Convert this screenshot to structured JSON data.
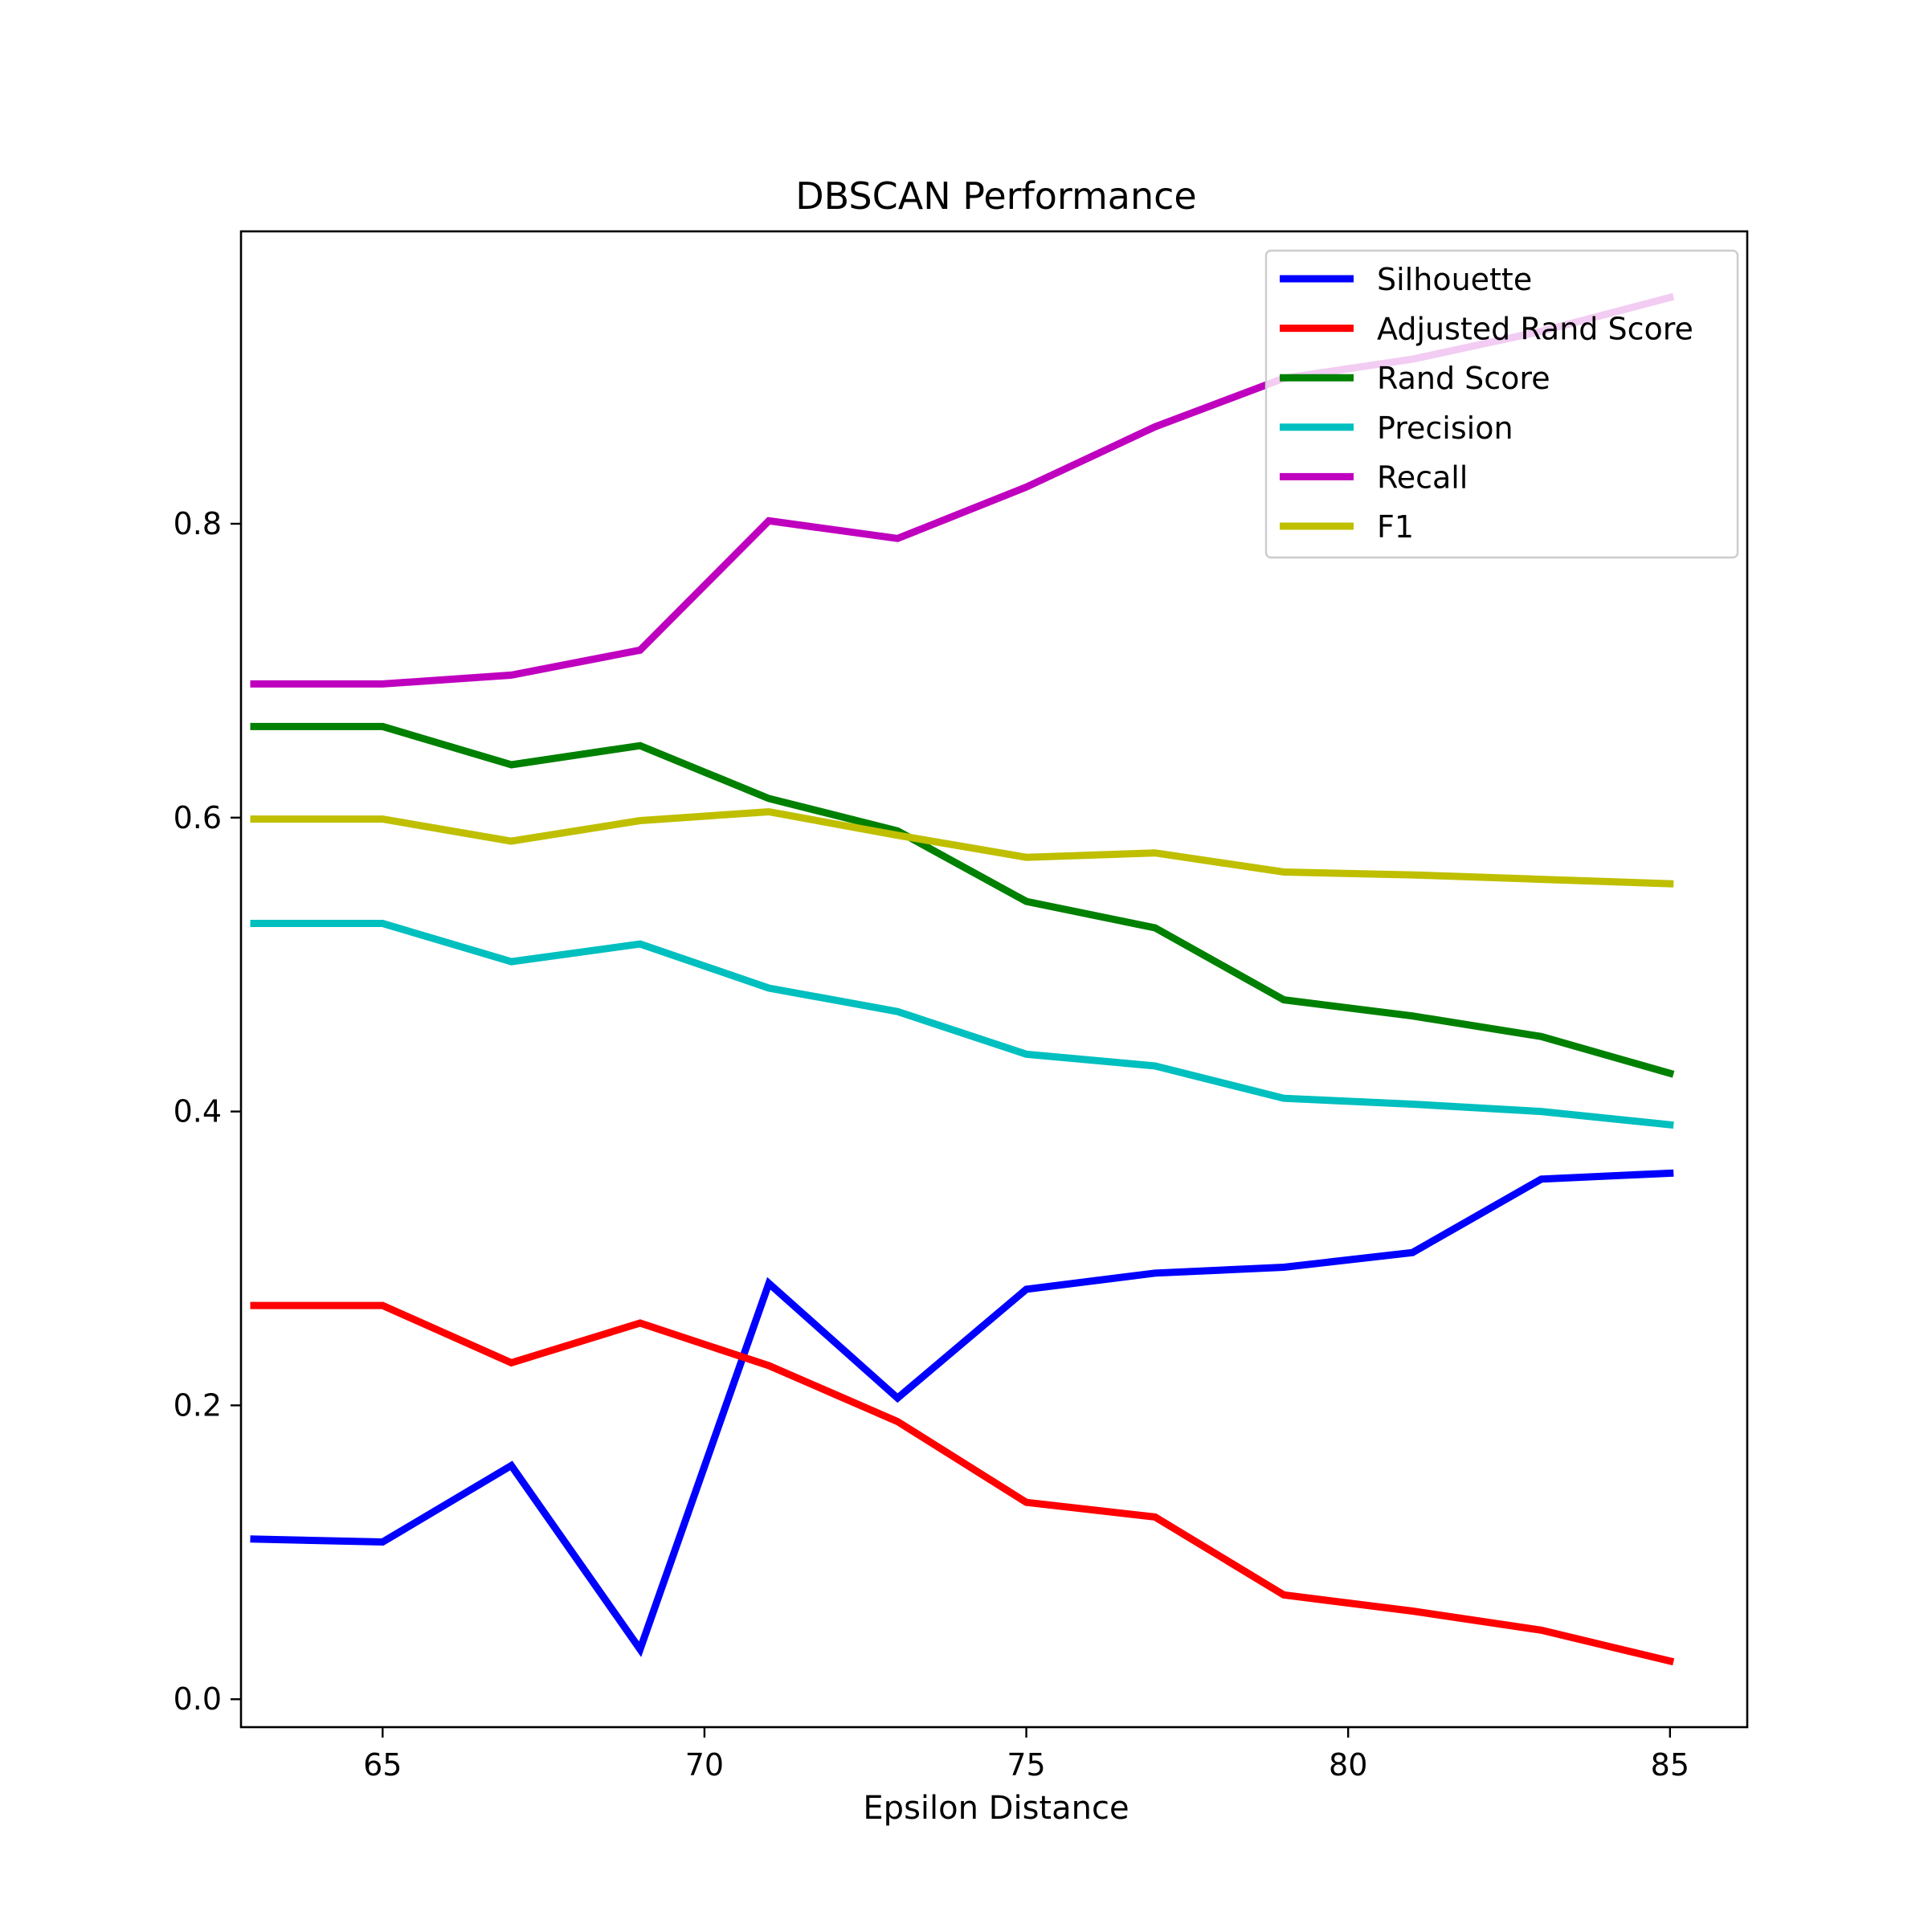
{
  "chart_data": {
    "type": "line",
    "title": "DBSCAN Performance",
    "xlabel": "Epsilon Distance",
    "ylabel": "",
    "xlim": [
      62.8,
      86.2
    ],
    "ylim": [
      -0.019,
      0.999
    ],
    "x_ticks": [
      65,
      70,
      75,
      80,
      85
    ],
    "x_tick_labels": [
      "65",
      "70",
      "75",
      "80",
      "85"
    ],
    "y_ticks": [
      0.0,
      0.2,
      0.4,
      0.6,
      0.8
    ],
    "y_tick_labels": [
      "0.0",
      "0.2",
      "0.4",
      "0.6",
      "0.8"
    ],
    "grid": false,
    "legend_position": "top-right",
    "x": [
      63,
      65,
      67,
      69,
      71,
      73,
      75,
      77,
      79,
      81,
      83,
      85
    ],
    "series": [
      {
        "name": "Silhouette",
        "color": "#0000ff",
        "values": [
          0.109,
          0.107,
          0.159,
          0.034,
          0.283,
          0.205,
          0.279,
          0.29,
          0.294,
          0.304,
          0.354,
          0.358
        ]
      },
      {
        "name": "Adjusted Rand Score",
        "color": "#ff0000",
        "values": [
          0.268,
          0.268,
          0.229,
          0.256,
          0.227,
          0.189,
          0.134,
          0.124,
          0.071,
          0.06,
          0.047,
          0.026
        ]
      },
      {
        "name": "Rand Score",
        "color": "#008000",
        "values": [
          0.662,
          0.662,
          0.636,
          0.649,
          0.613,
          0.591,
          0.543,
          0.525,
          0.476,
          0.465,
          0.451,
          0.426
        ]
      },
      {
        "name": "Precision",
        "color": "#00bfbf",
        "values": [
          0.528,
          0.528,
          0.502,
          0.514,
          0.484,
          0.468,
          0.439,
          0.431,
          0.409,
          0.405,
          0.4,
          0.391
        ]
      },
      {
        "name": "Recall",
        "color": "#bf00bf",
        "values": [
          0.691,
          0.691,
          0.697,
          0.714,
          0.802,
          0.79,
          0.825,
          0.866,
          0.899,
          0.912,
          0.931,
          0.954
        ]
      },
      {
        "name": "F1",
        "color": "#bfbf00",
        "values": [
          0.599,
          0.599,
          0.584,
          0.598,
          0.604,
          0.588,
          0.573,
          0.576,
          0.563,
          0.561,
          0.558,
          0.555
        ]
      }
    ]
  }
}
